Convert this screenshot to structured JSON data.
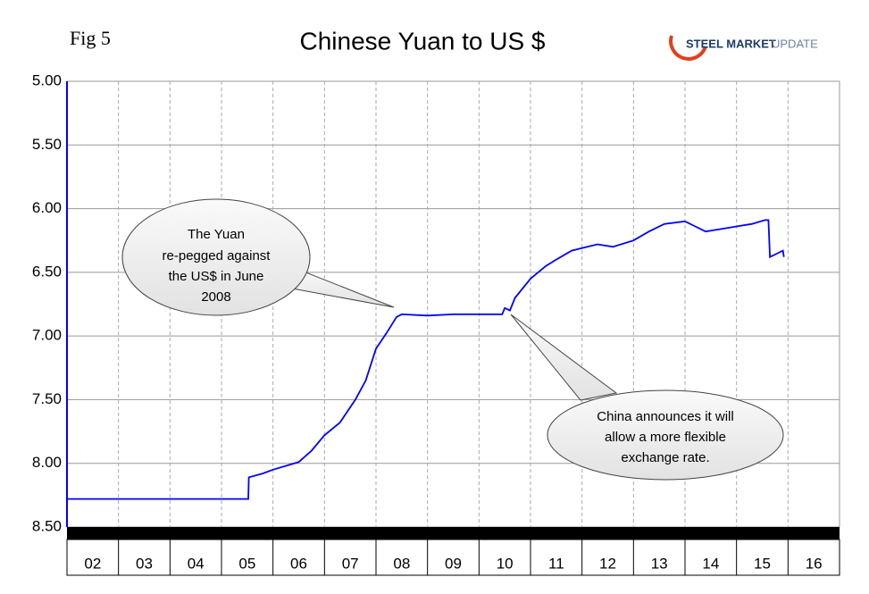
{
  "figure_label": "Fig 5",
  "logo": [
    "STEEL MARKET",
    "UPDATE"
  ],
  "chart_data": {
    "type": "line",
    "title": "Chinese Yuan to US $",
    "categories": [
      "02",
      "03",
      "04",
      "05",
      "06",
      "07",
      "08",
      "09",
      "10",
      "11",
      "12",
      "13",
      "14",
      "15",
      "16"
    ],
    "xlim": [
      2,
      17
    ],
    "ylim": [
      5,
      8.5
    ],
    "y_reversed": true,
    "yticks": [
      {
        "value": 5,
        "label": "5.00"
      },
      {
        "value": 5.5,
        "label": "5.50"
      },
      {
        "value": 6,
        "label": "6.00"
      },
      {
        "value": 6.5,
        "label": "6.50"
      },
      {
        "value": 7,
        "label": "7.00"
      },
      {
        "value": 7.5,
        "label": "7.50"
      },
      {
        "value": 8,
        "label": "8.00"
      },
      {
        "value": 8.5,
        "label": "8.50"
      }
    ],
    "grid": true,
    "series": [
      {
        "color": "#0000ff",
        "x": [
          2,
          5.52,
          5.53,
          5.8,
          6.0,
          6.5,
          6.75,
          7.0,
          7.3,
          7.6,
          7.8,
          8.0,
          8.2,
          8.4,
          8.5,
          9.0,
          9.5,
          10.0,
          10.45,
          10.5,
          10.6,
          10.7,
          11.0,
          11.3,
          11.5,
          11.8,
          12.0,
          12.3,
          12.6,
          13.0,
          13.3,
          13.6,
          14.0,
          14.2,
          14.4,
          14.7,
          15.0,
          15.3,
          15.55,
          15.62,
          15.65,
          15.8,
          15.9,
          15.92
        ],
        "values": [
          8.28,
          8.28,
          8.11,
          8.08,
          8.05,
          7.99,
          7.9,
          7.78,
          7.68,
          7.5,
          7.35,
          7.1,
          6.98,
          6.85,
          6.83,
          6.84,
          6.83,
          6.83,
          6.83,
          6.78,
          6.8,
          6.7,
          6.55,
          6.45,
          6.4,
          6.33,
          6.31,
          6.28,
          6.3,
          6.25,
          6.18,
          6.12,
          6.1,
          6.14,
          6.18,
          6.16,
          6.14,
          6.12,
          6.09,
          6.09,
          6.38,
          6.35,
          6.33,
          6.38
        ]
      }
    ],
    "annotations": [
      {
        "lines": [
          "The Yuan",
          "re-pegged against",
          "the US$ in June",
          "2008"
        ]
      },
      {
        "lines": [
          "China announces it will",
          "allow a more flexible",
          "exchange rate."
        ]
      }
    ]
  }
}
